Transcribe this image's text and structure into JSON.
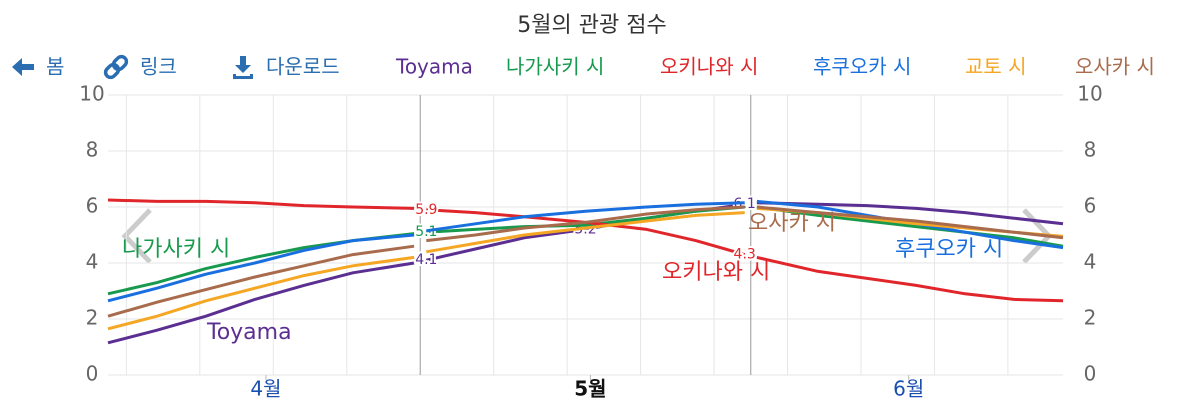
{
  "toolbar": {
    "back": "봄",
    "link": "링크",
    "download": "다운로드"
  },
  "chart_data": {
    "type": "line",
    "title": "5월의 관광 점수",
    "x": [
      0,
      2,
      4,
      6,
      8,
      10,
      12.5,
      12.75,
      13,
      15,
      17,
      19.5,
      22,
      24,
      26,
      26.25,
      26.5,
      29,
      31,
      33,
      35,
      37,
      39
    ],
    "xlim": [
      0,
      39
    ],
    "xticks": [
      {
        "value": 6.45,
        "label": "4월"
      },
      {
        "value": 19.7,
        "label": "5월"
      },
      {
        "value": 32.7,
        "label": "6월"
      }
    ],
    "highlight_xtick": 1,
    "xgrid": [
      0.75,
      3.75,
      6.75,
      9.75,
      15.75,
      18.75,
      21.75,
      24.75,
      27.75,
      30.75,
      33.75,
      36.75
    ],
    "separators": [
      12.75,
      26.25
    ],
    "ylim": [
      0,
      10
    ],
    "yticks": [
      0,
      2,
      4,
      6,
      8,
      10
    ],
    "grid": true,
    "series": [
      {
        "name": "Toyama",
        "color": "#5b2f91",
        "values": [
          1.15,
          1.6,
          2.1,
          2.7,
          3.2,
          3.65,
          4.0,
          null,
          4.1,
          4.5,
          4.9,
          5.2,
          5.6,
          5.85,
          6.1,
          null,
          6.15,
          6.1,
          6.05,
          5.95,
          5.8,
          5.6,
          5.4
        ],
        "labeled": [
          8,
          11,
          14
        ]
      },
      {
        "name": "나가사키 시",
        "color": "#189a4e",
        "values": [
          2.9,
          3.3,
          3.8,
          4.2,
          4.55,
          4.8,
          5.05,
          null,
          5.1,
          5.2,
          5.3,
          5.35,
          5.6,
          5.85,
          6.0,
          null,
          6.0,
          5.7,
          5.5,
          5.3,
          5.1,
          4.9,
          4.6
        ],
        "labeled": [
          8
        ]
      },
      {
        "name": "오키나와 시",
        "color": "#e0262b",
        "values": [
          6.25,
          6.2,
          6.2,
          6.15,
          6.05,
          6.0,
          5.95,
          null,
          5.9,
          5.8,
          5.65,
          5.45,
          5.2,
          4.8,
          4.3,
          null,
          4.2,
          3.7,
          3.45,
          3.2,
          2.9,
          2.7,
          2.65
        ],
        "labeled": [
          8,
          14
        ]
      },
      {
        "name": "후쿠오카 시",
        "color": "#1a6fdf",
        "values": [
          2.65,
          3.1,
          3.6,
          4.0,
          4.45,
          4.8,
          5.0,
          null,
          5.15,
          5.4,
          5.65,
          5.85,
          6.0,
          6.1,
          6.15,
          null,
          6.2,
          6.0,
          5.7,
          5.4,
          5.1,
          4.8,
          4.55
        ],
        "labeled": []
      },
      {
        "name": "교토 시",
        "color": "#f5a623",
        "values": [
          1.65,
          2.1,
          2.65,
          3.1,
          3.55,
          3.9,
          4.2,
          null,
          4.4,
          4.7,
          5.0,
          5.25,
          5.5,
          5.7,
          5.8,
          null,
          5.95,
          5.8,
          5.6,
          5.4,
          5.25,
          5.1,
          4.95
        ],
        "labeled": []
      },
      {
        "name": "오사카 시",
        "color": "#a86b4c",
        "values": [
          2.1,
          2.6,
          3.05,
          3.5,
          3.9,
          4.3,
          4.6,
          null,
          4.8,
          5.0,
          5.25,
          5.45,
          5.75,
          5.9,
          6.0,
          null,
          6.0,
          5.8,
          5.65,
          5.5,
          5.3,
          5.1,
          4.9
        ],
        "labeled": []
      }
    ]
  }
}
